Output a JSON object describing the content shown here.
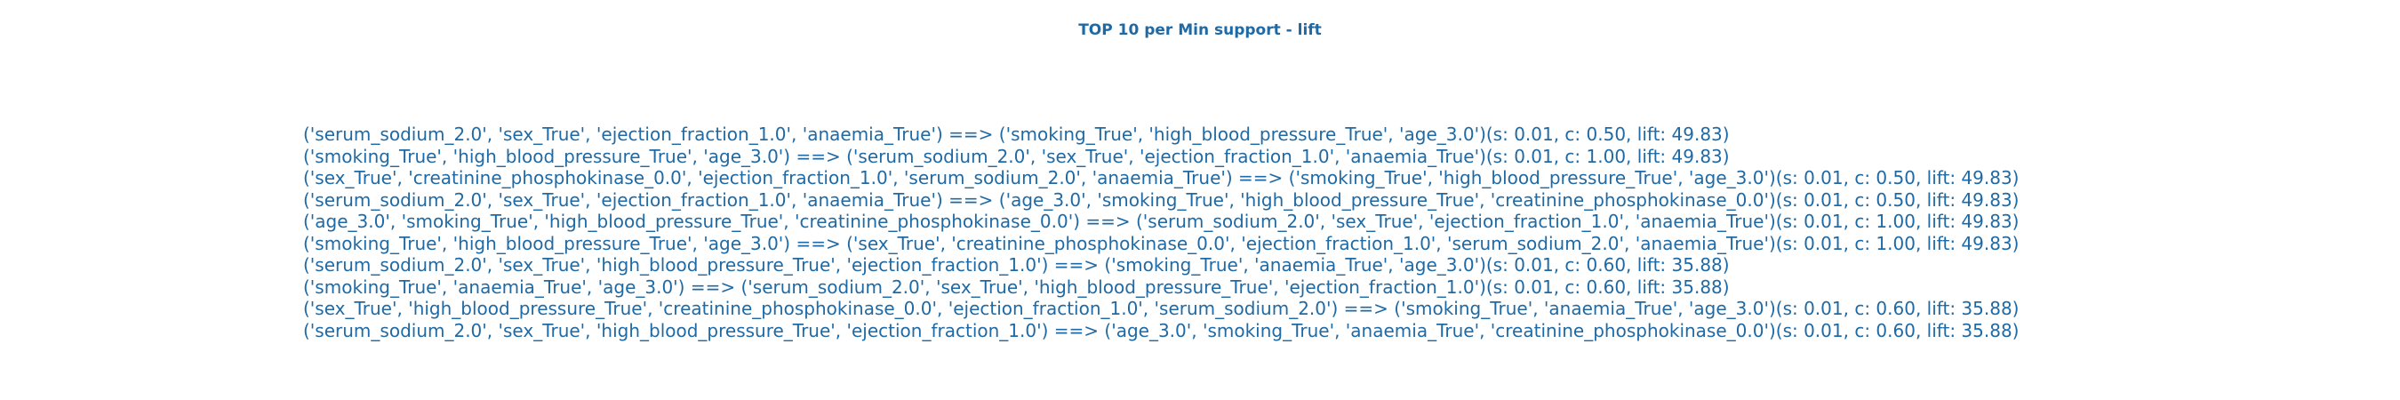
{
  "title": "TOP 10 per Min support - lift",
  "rules": [
    "('serum_sodium_2.0', 'sex_True', 'ejection_fraction_1.0', 'anaemia_True') ==> ('smoking_True', 'high_blood_pressure_True', 'age_3.0')(s: 0.01, c: 0.50, lift: 49.83)",
    "('smoking_True', 'high_blood_pressure_True', 'age_3.0') ==> ('serum_sodium_2.0', 'sex_True', 'ejection_fraction_1.0', 'anaemia_True')(s: 0.01, c: 1.00, lift: 49.83)",
    "('sex_True', 'creatinine_phosphokinase_0.0', 'ejection_fraction_1.0', 'serum_sodium_2.0', 'anaemia_True') ==> ('smoking_True', 'high_blood_pressure_True', 'age_3.0')(s: 0.01, c: 0.50, lift: 49.83)",
    "('serum_sodium_2.0', 'sex_True', 'ejection_fraction_1.0', 'anaemia_True') ==> ('age_3.0', 'smoking_True', 'high_blood_pressure_True', 'creatinine_phosphokinase_0.0')(s: 0.01, c: 0.50, lift: 49.83)",
    "('age_3.0', 'smoking_True', 'high_blood_pressure_True', 'creatinine_phosphokinase_0.0') ==> ('serum_sodium_2.0', 'sex_True', 'ejection_fraction_1.0', 'anaemia_True')(s: 0.01, c: 1.00, lift: 49.83)",
    "('smoking_True', 'high_blood_pressure_True', 'age_3.0') ==> ('sex_True', 'creatinine_phosphokinase_0.0', 'ejection_fraction_1.0', 'serum_sodium_2.0', 'anaemia_True')(s: 0.01, c: 1.00, lift: 49.83)",
    "('serum_sodium_2.0', 'sex_True', 'high_blood_pressure_True', 'ejection_fraction_1.0') ==> ('smoking_True', 'anaemia_True', 'age_3.0')(s: 0.01, c: 0.60, lift: 35.88)",
    "('smoking_True', 'anaemia_True', 'age_3.0') ==> ('serum_sodium_2.0', 'sex_True', 'high_blood_pressure_True', 'ejection_fraction_1.0')(s: 0.01, c: 0.60, lift: 35.88)",
    "('sex_True', 'high_blood_pressure_True', 'creatinine_phosphokinase_0.0', 'ejection_fraction_1.0', 'serum_sodium_2.0') ==> ('smoking_True', 'anaemia_True', 'age_3.0')(s: 0.01, c: 0.60, lift: 35.88)",
    "('serum_sodium_2.0', 'sex_True', 'high_blood_pressure_True', 'ejection_fraction_1.0') ==> ('age_3.0', 'smoking_True', 'anaemia_True', 'creatinine_phosphokinase_0.0')(s: 0.01, c: 0.60, lift: 35.88)"
  ],
  "text_color": "#1f6aa5"
}
